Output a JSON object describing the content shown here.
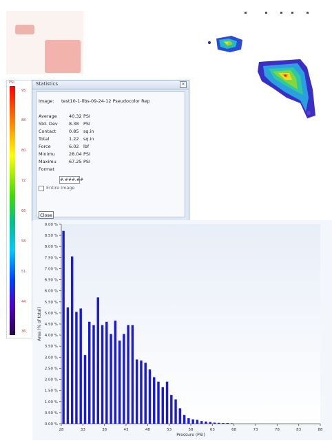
{
  "scale": {
    "unit_label": "PSI",
    "tick_labels": [
      "95",
      "88",
      "80",
      "72",
      "66",
      "58",
      "51",
      "44",
      "36"
    ],
    "label_color": "#c04040"
  },
  "stats": {
    "title": "Statistics",
    "close_glyph": "×",
    "image_label": "Image:",
    "image_value": "test10-1-llbs-09-24-12 Pseudocolor Rep",
    "rows": [
      {
        "label": "Average",
        "value": "40.32",
        "unit": "PSI"
      },
      {
        "label": "Std. Dev",
        "value": "8.38",
        "unit": "PSI"
      },
      {
        "label": "Contact",
        "value": "0.85",
        "unit": "sq.in"
      },
      {
        "label": "Total",
        "value": "1.22",
        "unit": "sq.in"
      },
      {
        "label": "Force",
        "value": "6.02",
        "unit": "lbf"
      },
      {
        "label": "Minimu",
        "value": "28.04",
        "unit": "PSI"
      },
      {
        "label": "Maximu",
        "value": "67.25",
        "unit": "PSI"
      }
    ],
    "format_label": "Format",
    "format_value": "#.###.##",
    "entire_image_label": "Entire Image",
    "close_button": "Close"
  },
  "chart_data": {
    "type": "bar",
    "xlabel": "Pressure (PSI)",
    "ylabel": "Area (% of total)",
    "xlim": [
      28,
      88
    ],
    "ylim": [
      0,
      9.0
    ],
    "x_ticks": [
      28,
      33,
      38,
      43,
      48,
      53,
      58,
      63,
      68,
      73,
      78,
      83,
      88
    ],
    "y_ticks": [
      "0.00 %",
      "0.50 %",
      "1.00 %",
      "1.50 %",
      "2.00 %",
      "2.50 %",
      "3.00 %",
      "3.50 %",
      "4.00 %",
      "4.50 %",
      "5.00 %",
      "5.50 %",
      "6.00 %",
      "6.50 %",
      "7.00 %",
      "7.50 %",
      "8.00 %",
      "8.50 %",
      "9.00 %"
    ],
    "x": [
      28.5,
      29.5,
      30.5,
      31.5,
      32.5,
      33.5,
      34.5,
      35.5,
      36.5,
      37.5,
      38.5,
      39.5,
      40.5,
      41.5,
      42.5,
      43.5,
      44.5,
      45.5,
      46.5,
      47.5,
      48.5,
      49.5,
      50.5,
      51.5,
      52.5,
      53.5,
      54.5,
      55.5,
      56.5,
      57.5,
      58.5,
      59.5,
      60.5,
      61.5,
      62.5,
      63.5,
      64.5,
      65.5,
      66.5,
      67.5
    ],
    "values": [
      8.7,
      5.25,
      7.55,
      5.05,
      5.2,
      3.1,
      4.6,
      4.45,
      5.7,
      4.45,
      4.6,
      4.05,
      4.65,
      3.75,
      4.05,
      4.45,
      4.45,
      2.9,
      2.85,
      2.75,
      2.45,
      2.1,
      1.9,
      1.65,
      1.9,
      1.3,
      1.1,
      0.7,
      0.4,
      0.25,
      0.2,
      0.18,
      0.12,
      0.1,
      0.08,
      0.05,
      0.04,
      0.03,
      0.03,
      0.02
    ],
    "bar_color": "#1a1adc",
    "plot_bg_top": "#e8eef8",
    "plot_bg_bottom": "#ffffff"
  }
}
